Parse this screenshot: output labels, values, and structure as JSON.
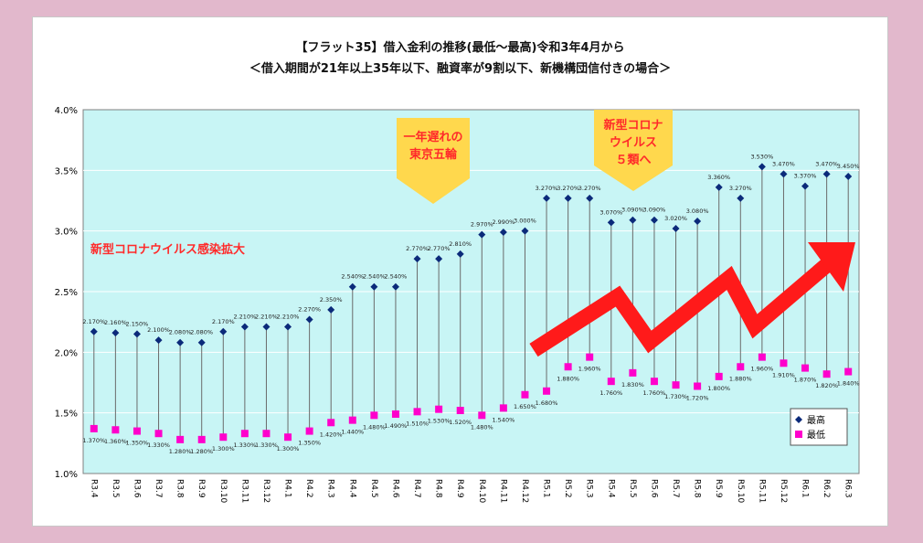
{
  "chart_data": {
    "type": "line",
    "title": "【フラット35】借入金利の推移(最低～最高)令和3年4月から",
    "subtitle": "＜借入期間が21年以上35年以下、融資率が9割以下、新機構団信付きの場合＞",
    "categories": [
      "R3.4",
      "R3.5",
      "R3.6",
      "R3.7",
      "R3.8",
      "R3.9",
      "R3.10",
      "R3.11",
      "R3.12",
      "R4.1",
      "R4.2",
      "R4.3",
      "R4.4",
      "R4.5",
      "R4.6",
      "R4.7",
      "R4.8",
      "R4.9",
      "R4.10",
      "R4.11",
      "R4.12",
      "R5.1",
      "R5.2",
      "R5.3",
      "R5.4",
      "R5.5",
      "R5.6",
      "R5.7",
      "R5.8",
      "R5.9",
      "R5.10",
      "R5.11",
      "R5.12",
      "R6.1",
      "R6.2",
      "R6.3"
    ],
    "series": [
      {
        "name": "最高",
        "color": "#0b2a7a",
        "marker": "diamond",
        "values": [
          2.17,
          2.16,
          2.15,
          2.1,
          2.08,
          2.08,
          2.17,
          2.21,
          2.21,
          2.21,
          2.27,
          2.35,
          2.54,
          2.54,
          2.54,
          2.77,
          2.77,
          2.81,
          2.97,
          2.99,
          3.0,
          3.27,
          3.27,
          3.27,
          3.07,
          3.09,
          3.09,
          3.02,
          3.08,
          3.36,
          3.27,
          3.53,
          3.47,
          3.37,
          3.47,
          3.45
        ],
        "labels": [
          "2.170%",
          "2.160%",
          "2.150%",
          "2.100%",
          "2.080%",
          "2.080%",
          "2.170%",
          "2.210%",
          "2.210%",
          "2.210%",
          "2.270%",
          "2.350%",
          "2.540%",
          "2.540%",
          "2.540%",
          "2.770%",
          "2.770%",
          "2.810%",
          "2.970%",
          "2.990%",
          "3.000%",
          "3.270%",
          "3.270%",
          "3.270%",
          "3.070%",
          "3.090%",
          "3.090%",
          "3.020%",
          "3.080%",
          "3.360%",
          "3.270%",
          "3.530%",
          "3.470%",
          "3.370%",
          "3.470%",
          "3.450%"
        ]
      },
      {
        "name": "最低",
        "color": "#ff00cc",
        "marker": "square",
        "values": [
          1.37,
          1.36,
          1.35,
          1.33,
          1.28,
          1.28,
          1.3,
          1.33,
          1.33,
          1.3,
          1.35,
          1.42,
          1.44,
          1.48,
          1.49,
          1.51,
          1.53,
          1.52,
          1.48,
          1.54,
          1.65,
          1.68,
          1.88,
          1.96,
          1.76,
          1.83,
          1.76,
          1.73,
          1.72,
          1.8,
          1.88,
          1.96,
          1.91,
          1.87,
          1.82,
          1.84
        ],
        "labels": [
          "1.370%",
          "1.360%",
          "1.350%",
          "1.330%",
          "1.280%",
          "1.280%",
          "1.300%",
          "1.330%",
          "1.330%",
          "1.300%",
          "1.350%",
          "1.420%",
          "1.440%",
          "1.480%",
          "1.490%",
          "1.510%",
          "1.530%",
          "1.520%",
          "1.480%",
          "1.540%",
          "1.650%",
          "1.680%",
          "1.880%",
          "1.960%",
          "1.760%",
          "1.830%",
          "1.760%",
          "1.730%",
          "1.720%",
          "1.800%",
          "1.880%",
          "1.960%",
          "1.910%",
          "1.870%",
          "1.820%",
          "1.840%"
        ]
      }
    ],
    "ylim": [
      1.0,
      4.0
    ],
    "yticks": [
      "1.0%",
      "1.5%",
      "2.0%",
      "2.5%",
      "3.0%",
      "3.5%",
      "4.0%"
    ],
    "grid": true,
    "legend_position": "bottom-right",
    "plot_background": "#c8f5f5",
    "annotations": {
      "covid_spread": "新型コロナウイルス感染拡大",
      "olympics": [
        "一年遅れの",
        "東京五輪"
      ],
      "covid_class5": [
        "新型コロナ",
        "ウイルス",
        "５類へ"
      ]
    },
    "trend_arrow_color": "#ff1a1a",
    "callout_color": "#ffd84d"
  }
}
